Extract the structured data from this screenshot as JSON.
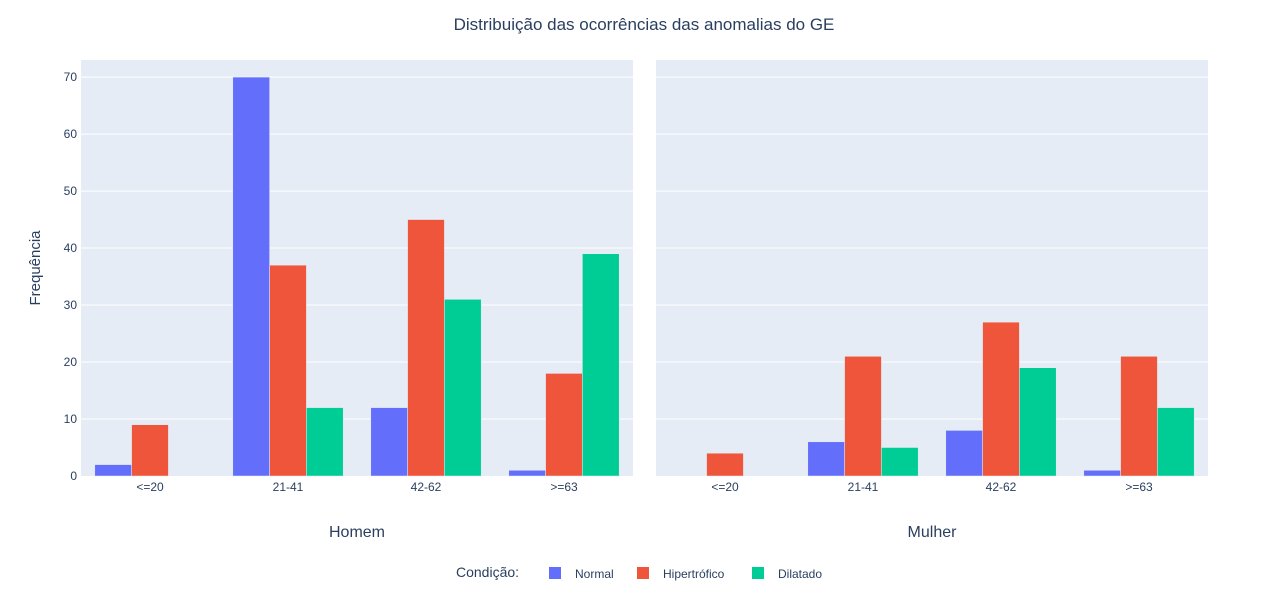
{
  "chart_data": {
    "type": "bar",
    "title": "Distribuição das ocorrências das anomalias do GE",
    "ylabel": "Frequência",
    "ylim": [
      0,
      73
    ],
    "yticks": [
      0,
      10,
      20,
      30,
      40,
      50,
      60,
      70
    ],
    "categories": [
      "<=20",
      "21-41",
      "42-62",
      ">=63"
    ],
    "legend": {
      "title": "Condição:",
      "placement": "bottom-center"
    },
    "colors": {
      "Normal": "#636efa",
      "Hipertrófico": "#ef553b",
      "Dilatado": "#00cc96",
      "plot_bg": "#e5ecf6",
      "text": "#2a3f5f"
    },
    "grid": true,
    "panels": [
      {
        "name": "Homem",
        "series": [
          {
            "name": "Normal",
            "values": [
              2,
              70,
              12,
              1
            ]
          },
          {
            "name": "Hipertrófico",
            "values": [
              9,
              37,
              45,
              18
            ]
          },
          {
            "name": "Dilatado",
            "values": [
              0,
              12,
              31,
              39
            ]
          }
        ]
      },
      {
        "name": "Mulher",
        "series": [
          {
            "name": "Normal",
            "values": [
              0,
              6,
              8,
              1
            ]
          },
          {
            "name": "Hipertrófico",
            "values": [
              4,
              21,
              27,
              21
            ]
          },
          {
            "name": "Dilatado",
            "values": [
              0,
              5,
              19,
              12
            ]
          }
        ]
      }
    ]
  }
}
